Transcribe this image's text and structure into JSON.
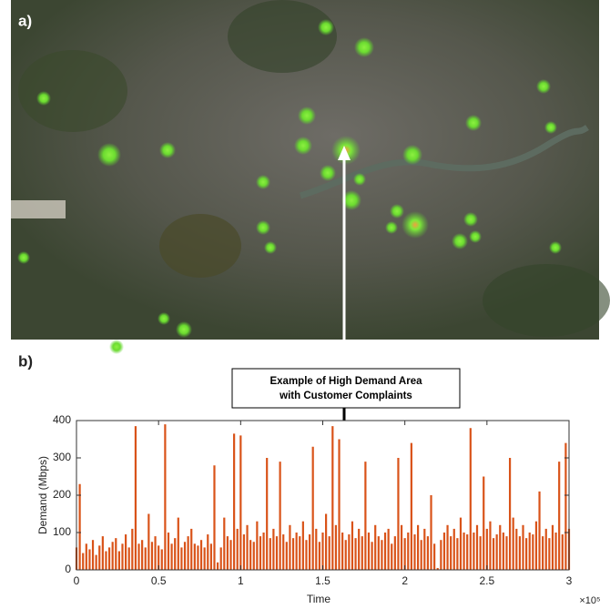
{
  "panel_a_label": "a)",
  "panel_b_label": "b)",
  "annotation": [
    "Example of High Demand Area",
    "with Customer Complaints"
  ],
  "chart_data": {
    "type": "stem",
    "x_label": "Time",
    "y_label": "Demand (Mbps)",
    "x_exponent_label": "×10⁵",
    "color": "#d95319",
    "xlim": [
      0,
      300000
    ],
    "ylim": [
      0,
      400
    ],
    "xticks": [
      0,
      {
        "value": 50000,
        "label": "0.5"
      },
      {
        "value": 100000,
        "label": "1"
      },
      {
        "value": 150000,
        "label": "1.5"
      },
      {
        "value": 200000,
        "label": "2"
      },
      {
        "value": 250000,
        "label": "2.5"
      },
      {
        "value": 300000,
        "label": "3"
      }
    ],
    "yticks": [
      0,
      100,
      200,
      300,
      400
    ],
    "x": [
      0,
      2000,
      4000,
      6000,
      8000,
      10000,
      12000,
      14000,
      16000,
      18000,
      20000,
      22000,
      24000,
      26000,
      28000,
      30000,
      32000,
      34000,
      36000,
      38000,
      40000,
      42000,
      44000,
      46000,
      48000,
      50000,
      52000,
      54000,
      56000,
      58000,
      60000,
      62000,
      64000,
      66000,
      68000,
      70000,
      72000,
      74000,
      76000,
      78000,
      80000,
      82000,
      84000,
      86000,
      88000,
      90000,
      92000,
      94000,
      96000,
      98000,
      100000,
      102000,
      104000,
      106000,
      108000,
      110000,
      112000,
      114000,
      116000,
      118000,
      120000,
      122000,
      124000,
      126000,
      128000,
      130000,
      132000,
      134000,
      136000,
      138000,
      140000,
      142000,
      144000,
      146000,
      148000,
      150000,
      152000,
      154000,
      156000,
      158000,
      160000,
      162000,
      164000,
      166000,
      168000,
      170000,
      172000,
      174000,
      176000,
      178000,
      180000,
      182000,
      184000,
      186000,
      188000,
      190000,
      192000,
      194000,
      196000,
      198000,
      200000,
      202000,
      204000,
      206000,
      208000,
      210000,
      212000,
      214000,
      216000,
      218000,
      220000,
      222000,
      224000,
      226000,
      228000,
      230000,
      232000,
      234000,
      236000,
      238000,
      240000,
      242000,
      244000,
      246000,
      248000,
      250000,
      252000,
      254000,
      256000,
      258000,
      260000,
      262000,
      264000,
      266000,
      268000,
      270000,
      272000,
      274000,
      276000,
      278000,
      280000,
      282000,
      284000,
      286000,
      288000,
      290000,
      292000,
      294000,
      296000,
      298000,
      300000
    ],
    "values": [
      60,
      230,
      45,
      70,
      55,
      80,
      40,
      65,
      90,
      50,
      60,
      75,
      85,
      50,
      70,
      95,
      60,
      110,
      385,
      70,
      80,
      60,
      150,
      75,
      90,
      65,
      55,
      390,
      100,
      70,
      85,
      140,
      60,
      75,
      90,
      110,
      70,
      65,
      80,
      60,
      95,
      70,
      280,
      20,
      60,
      140,
      90,
      80,
      365,
      110,
      360,
      95,
      120,
      80,
      75,
      130,
      90,
      100,
      300,
      85,
      110,
      90,
      290,
      95,
      75,
      120,
      85,
      100,
      90,
      130,
      80,
      95,
      330,
      110,
      75,
      100,
      150,
      90,
      385,
      120,
      350,
      100,
      80,
      95,
      130,
      85,
      110,
      90,
      290,
      100,
      75,
      120,
      90,
      80,
      100,
      110,
      70,
      90,
      300,
      120,
      85,
      100,
      340,
      95,
      120,
      80,
      110,
      90,
      200,
      70,
      5,
      80,
      100,
      120,
      90,
      110,
      85,
      140,
      100,
      95,
      380,
      100,
      120,
      90,
      250,
      110,
      130,
      85,
      95,
      120,
      100,
      90,
      300,
      140,
      110,
      90,
      120,
      85,
      100,
      95,
      130,
      210,
      90,
      110,
      85,
      120,
      100,
      290,
      95,
      340,
      110
    ]
  }
}
